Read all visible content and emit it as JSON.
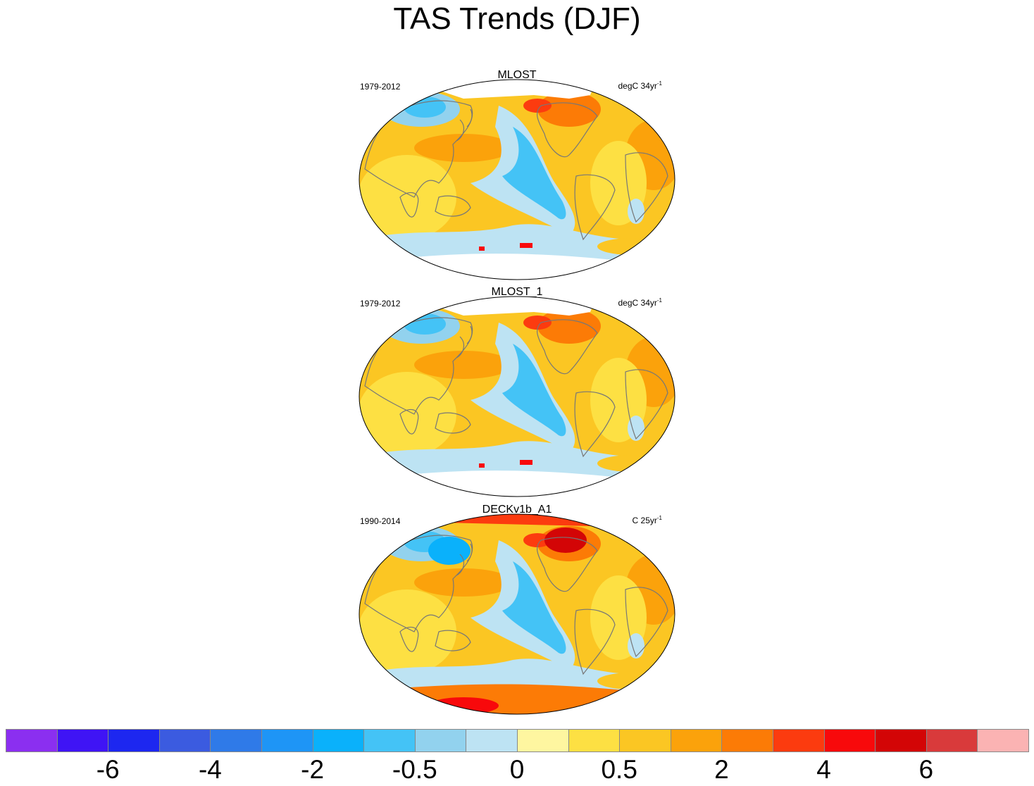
{
  "title": "TAS Trends (DJF)",
  "panels": [
    {
      "name": "MLOST",
      "period": "1979-2012",
      "units": "degC 34yr",
      "units_exp": "-1",
      "pattern": "obs"
    },
    {
      "name": "MLOST_1",
      "period": "1979-2012",
      "units": "degC 34yr",
      "units_exp": "-1",
      "pattern": "obs"
    },
    {
      "name": "DECKv1b_A1",
      "period": "1990-2014",
      "units": "C 25yr",
      "units_exp": "-1",
      "pattern": "model"
    }
  ],
  "colorbar": {
    "colors": [
      "#8b2ff0",
      "#3f14f5",
      "#1d27f0",
      "#3b5be0",
      "#2f7ae8",
      "#1e95f6",
      "#0ab1fb",
      "#44c3f6",
      "#92d2ee",
      "#bde3f3",
      "#fef6a0",
      "#fde043",
      "#fbc623",
      "#fba20b",
      "#fc7b06",
      "#fc3b0f",
      "#f8090b",
      "#d30506",
      "#d93a3b",
      "#fbb3b3"
    ],
    "tick_labels": [
      "-6",
      "-4",
      "-2",
      "-0.5",
      "0",
      "0.5",
      "2",
      "4",
      "6"
    ]
  }
}
